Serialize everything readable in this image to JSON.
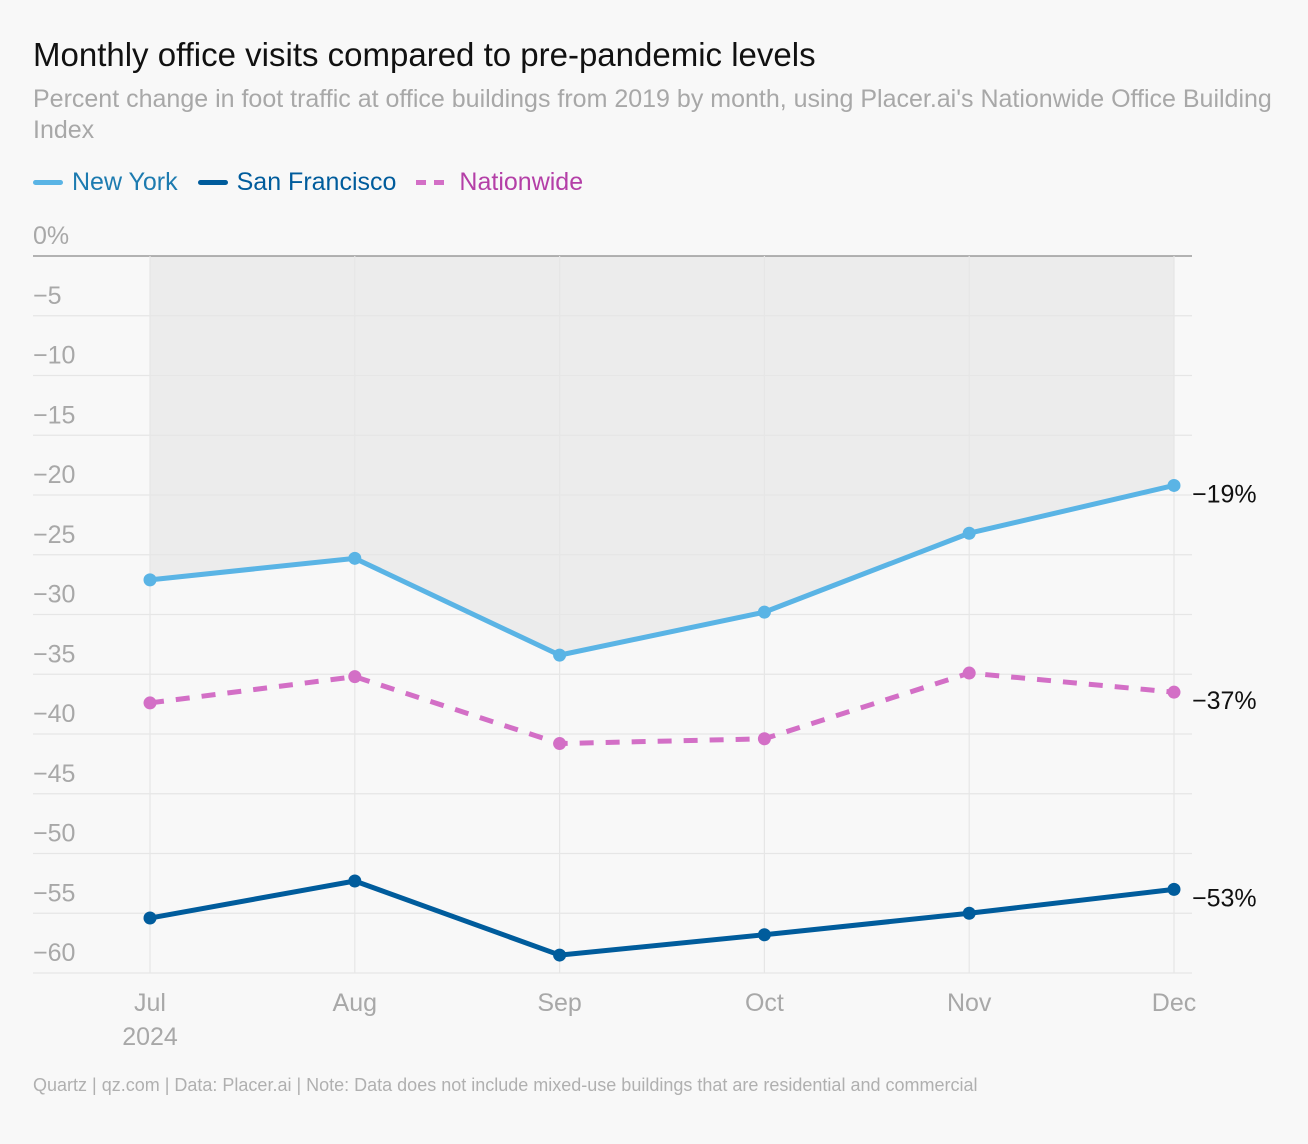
{
  "title": "Monthly office visits compared to pre-pandemic levels",
  "subtitle": "Percent change in foot traffic at office buildings from 2019 by month, using Placer.ai's Nationwide Office Building Index",
  "legend": [
    {
      "label": "New York",
      "color": "#5ab4e5",
      "text_color": "#1d7bb0",
      "style": "solid"
    },
    {
      "label": "San Francisco",
      "color": "#005c9c",
      "text_color": "#005c9c",
      "style": "solid"
    },
    {
      "label": "Nationwide",
      "color": "#d36fc6",
      "text_color": "#b43fa7",
      "style": "dashed"
    }
  ],
  "footer": "Quartz | qz.com | Data: Placer.ai | Note: Data does not include mixed-use buildings that are residential and commercial",
  "chart_data": {
    "type": "line",
    "categories": [
      "Jul",
      "Aug",
      "Sep",
      "Oct",
      "Nov",
      "Dec"
    ],
    "x_sublabels": [
      "2024",
      "",
      "",
      "",
      "",
      ""
    ],
    "ylim": [
      -60,
      0
    ],
    "yticks": [
      0,
      -5,
      -10,
      -15,
      -20,
      -25,
      -30,
      -35,
      -40,
      -45,
      -50,
      -55,
      -60
    ],
    "ytick_labels": [
      "0%",
      "−5",
      "−10",
      "−15",
      "−20",
      "−25",
      "−30",
      "−35",
      "−40",
      "−45",
      "−50",
      "−55",
      "−60"
    ],
    "grid": true,
    "shaded_band": {
      "series": "New York",
      "to": 0,
      "color": "#ececec"
    },
    "series": [
      {
        "name": "New York",
        "color": "#5ab4e5",
        "dashed": false,
        "values": [
          -27.1,
          -25.3,
          -33.4,
          -29.8,
          -23.2,
          -19.2
        ],
        "end_label": "−19%"
      },
      {
        "name": "Nationwide",
        "color": "#d36fc6",
        "dashed": true,
        "values": [
          -37.4,
          -35.2,
          -40.8,
          -40.4,
          -34.9,
          -36.5
        ],
        "end_label": "−37%"
      },
      {
        "name": "San Francisco",
        "color": "#005c9c",
        "dashed": false,
        "values": [
          -55.4,
          -52.3,
          -58.5,
          -56.8,
          -55.0,
          -53.0
        ],
        "end_label": "−53%"
      }
    ]
  }
}
